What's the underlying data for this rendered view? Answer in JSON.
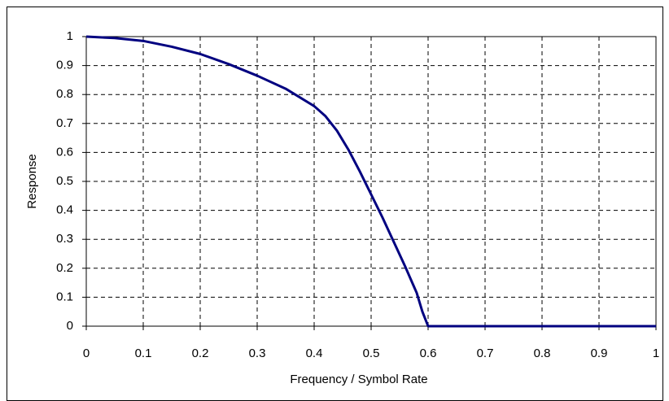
{
  "chart_data": {
    "type": "line",
    "xlabel": "Frequency / Symbol Rate",
    "ylabel": "Response",
    "x": [
      0,
      0.05,
      0.1,
      0.15,
      0.2,
      0.25,
      0.3,
      0.35,
      0.4,
      0.42,
      0.44,
      0.46,
      0.48,
      0.5,
      0.52,
      0.54,
      0.56,
      0.58,
      0.59,
      0.6,
      0.62,
      0.7,
      0.8,
      0.9,
      1
    ],
    "series": [
      {
        "name": "Response",
        "color": "#000080",
        "values": [
          1,
          0.995,
          0.985,
          0.965,
          0.94,
          0.905,
          0.865,
          0.82,
          0.76,
          0.725,
          0.675,
          0.61,
          0.535,
          0.455,
          0.375,
          0.29,
          0.205,
          0.115,
          0.05,
          0,
          0,
          0,
          0,
          0,
          0
        ]
      }
    ],
    "xlim": [
      0,
      1
    ],
    "xticks": [
      0,
      0.1,
      0.2,
      0.3,
      0.4,
      0.5,
      0.6,
      0.7,
      0.8,
      0.9,
      1
    ],
    "ylim": [
      0,
      1
    ],
    "yticks": [
      0,
      0.1,
      0.2,
      0.3,
      0.4,
      0.5,
      0.6,
      0.7,
      0.8,
      0.9,
      1
    ],
    "grid": true
  }
}
